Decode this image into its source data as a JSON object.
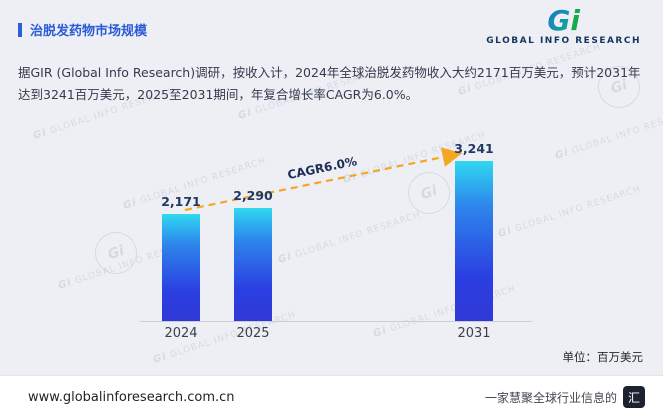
{
  "header": {
    "title": "治脱发药物市场规模"
  },
  "logo": {
    "g": "G",
    "i": "i",
    "text": "GLOBAL INFO RESEARCH"
  },
  "intro": {
    "text": "据GIR (Global Info Research)调研，按收入计，2024年全球治脱发药物收入大约2171百万美元，预计2031年达到3241百万美元，2025至2031期间，年复合增长率CAGR为6.0%。"
  },
  "chart_data": {
    "type": "bar",
    "categories": [
      "2024",
      "2025",
      "2031"
    ],
    "values": [
      2171,
      2290,
      3241
    ],
    "value_labels": [
      "2,171",
      "2,290",
      "3,241"
    ],
    "annotation": "CAGR6.0%",
    "unit": "单位：百万美元",
    "title": "治脱发药物市场规模",
    "ylabel": "百万美元",
    "ylim": [
      0,
      3500
    ],
    "bar_color_top": "#2fd8f1",
    "bar_color_bottom": "#3039d6",
    "arrow_color": "#f5a623",
    "legend": "none",
    "grid": "off"
  },
  "watermark": {
    "logo": "Gi",
    "text": "GLOBAL INFO RESEARCH"
  },
  "footer": {
    "url": "www.globalinforesearch.com.cn",
    "tagline": "一家慧聚全球行业信息的",
    "badge": "汇"
  }
}
